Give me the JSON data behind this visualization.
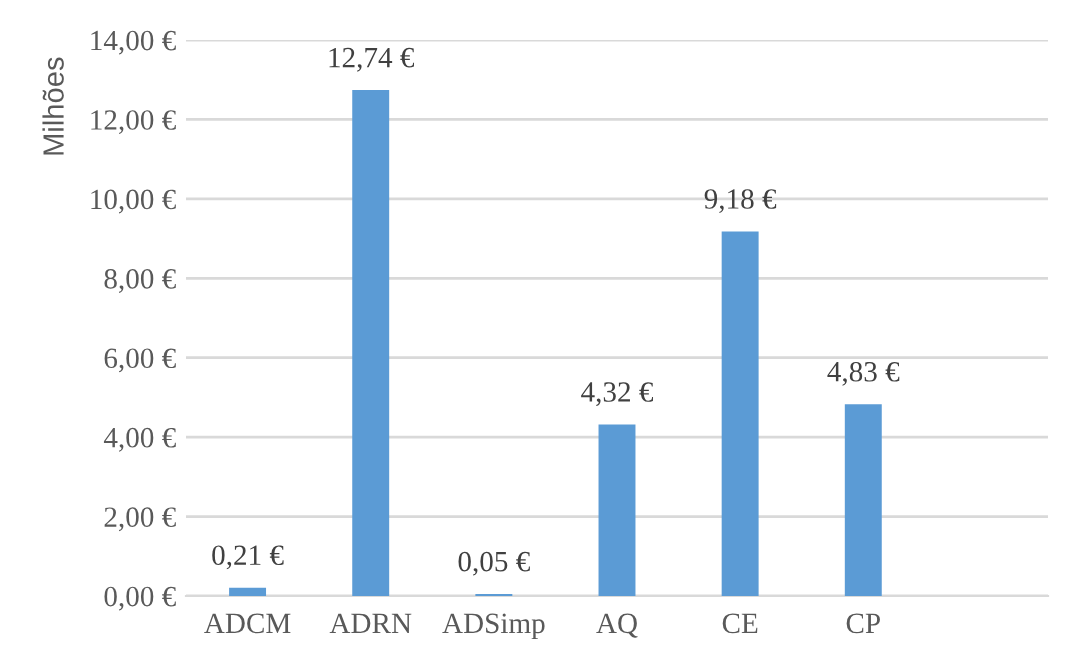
{
  "chart_data": {
    "type": "bar",
    "ylabel": "Milhões",
    "categories": [
      "ADCM",
      "ADRN",
      "ADSimp",
      "AQ",
      "CE",
      "CP",
      null
    ],
    "values": [
      0.21,
      12.74,
      0.05,
      4.32,
      9.18,
      4.83,
      null
    ],
    "value_labels": [
      "0,21 €",
      "12,74 €",
      "0,05 €",
      "4,32 €",
      "9,18 €",
      "4,83 €",
      null
    ],
    "color": "#5b9bd5",
    "ylim": [
      0,
      14
    ],
    "yticks": [
      {
        "value": 0,
        "label": "0,00 €"
      },
      {
        "value": 2,
        "label": "2,00 €"
      },
      {
        "value": 4,
        "label": "4,00 €"
      },
      {
        "value": 6,
        "label": "6,00 €"
      },
      {
        "value": 8,
        "label": "8,00 €"
      },
      {
        "value": 10,
        "label": "10,00 €"
      },
      {
        "value": 12,
        "label": "12,00 €"
      },
      {
        "value": 14,
        "label": "14,00 €"
      }
    ],
    "grid": "y",
    "legend": false
  }
}
